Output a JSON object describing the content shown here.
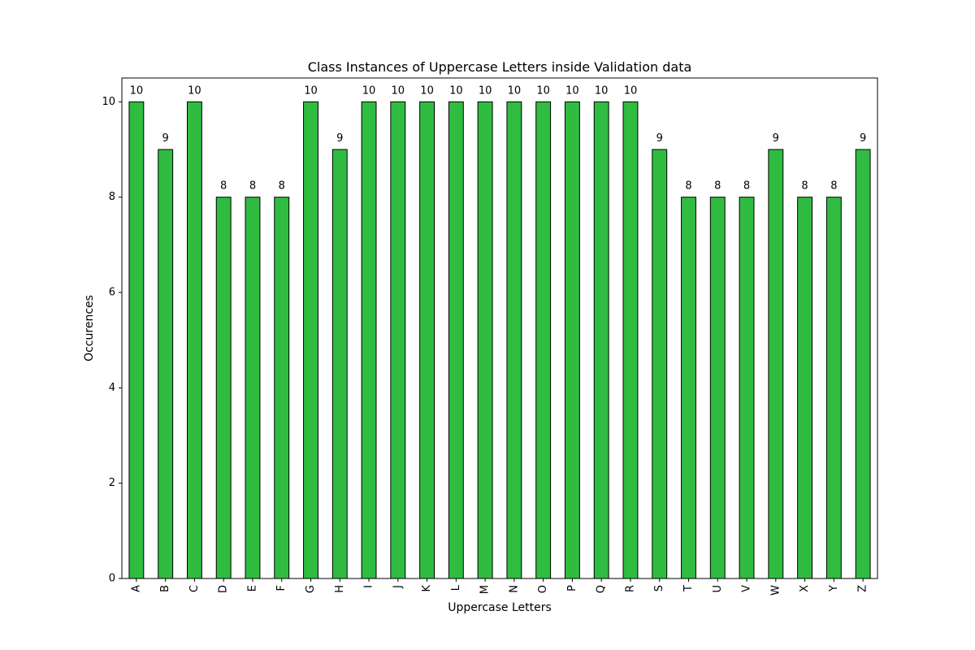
{
  "chart_data": {
    "type": "bar",
    "title": "Class Instances of Uppercase Letters inside Validation data",
    "xlabel": "Uppercase Letters",
    "ylabel": "Occurences",
    "categories": [
      "A",
      "B",
      "C",
      "D",
      "E",
      "F",
      "G",
      "H",
      "I",
      "J",
      "K",
      "L",
      "M",
      "N",
      "O",
      "P",
      "Q",
      "R",
      "S",
      "T",
      "U",
      "V",
      "W",
      "X",
      "Y",
      "Z"
    ],
    "values": [
      10,
      9,
      10,
      8,
      8,
      8,
      10,
      9,
      10,
      10,
      10,
      10,
      10,
      10,
      10,
      10,
      10,
      10,
      9,
      8,
      8,
      8,
      9,
      8,
      8,
      9
    ],
    "ylim": [
      0,
      10.5
    ],
    "yticks": [
      0,
      2,
      4,
      6,
      8,
      10
    ],
    "bar_color": "#2fbc41",
    "edge_color": "#000000",
    "grid": false,
    "legend": "none"
  }
}
